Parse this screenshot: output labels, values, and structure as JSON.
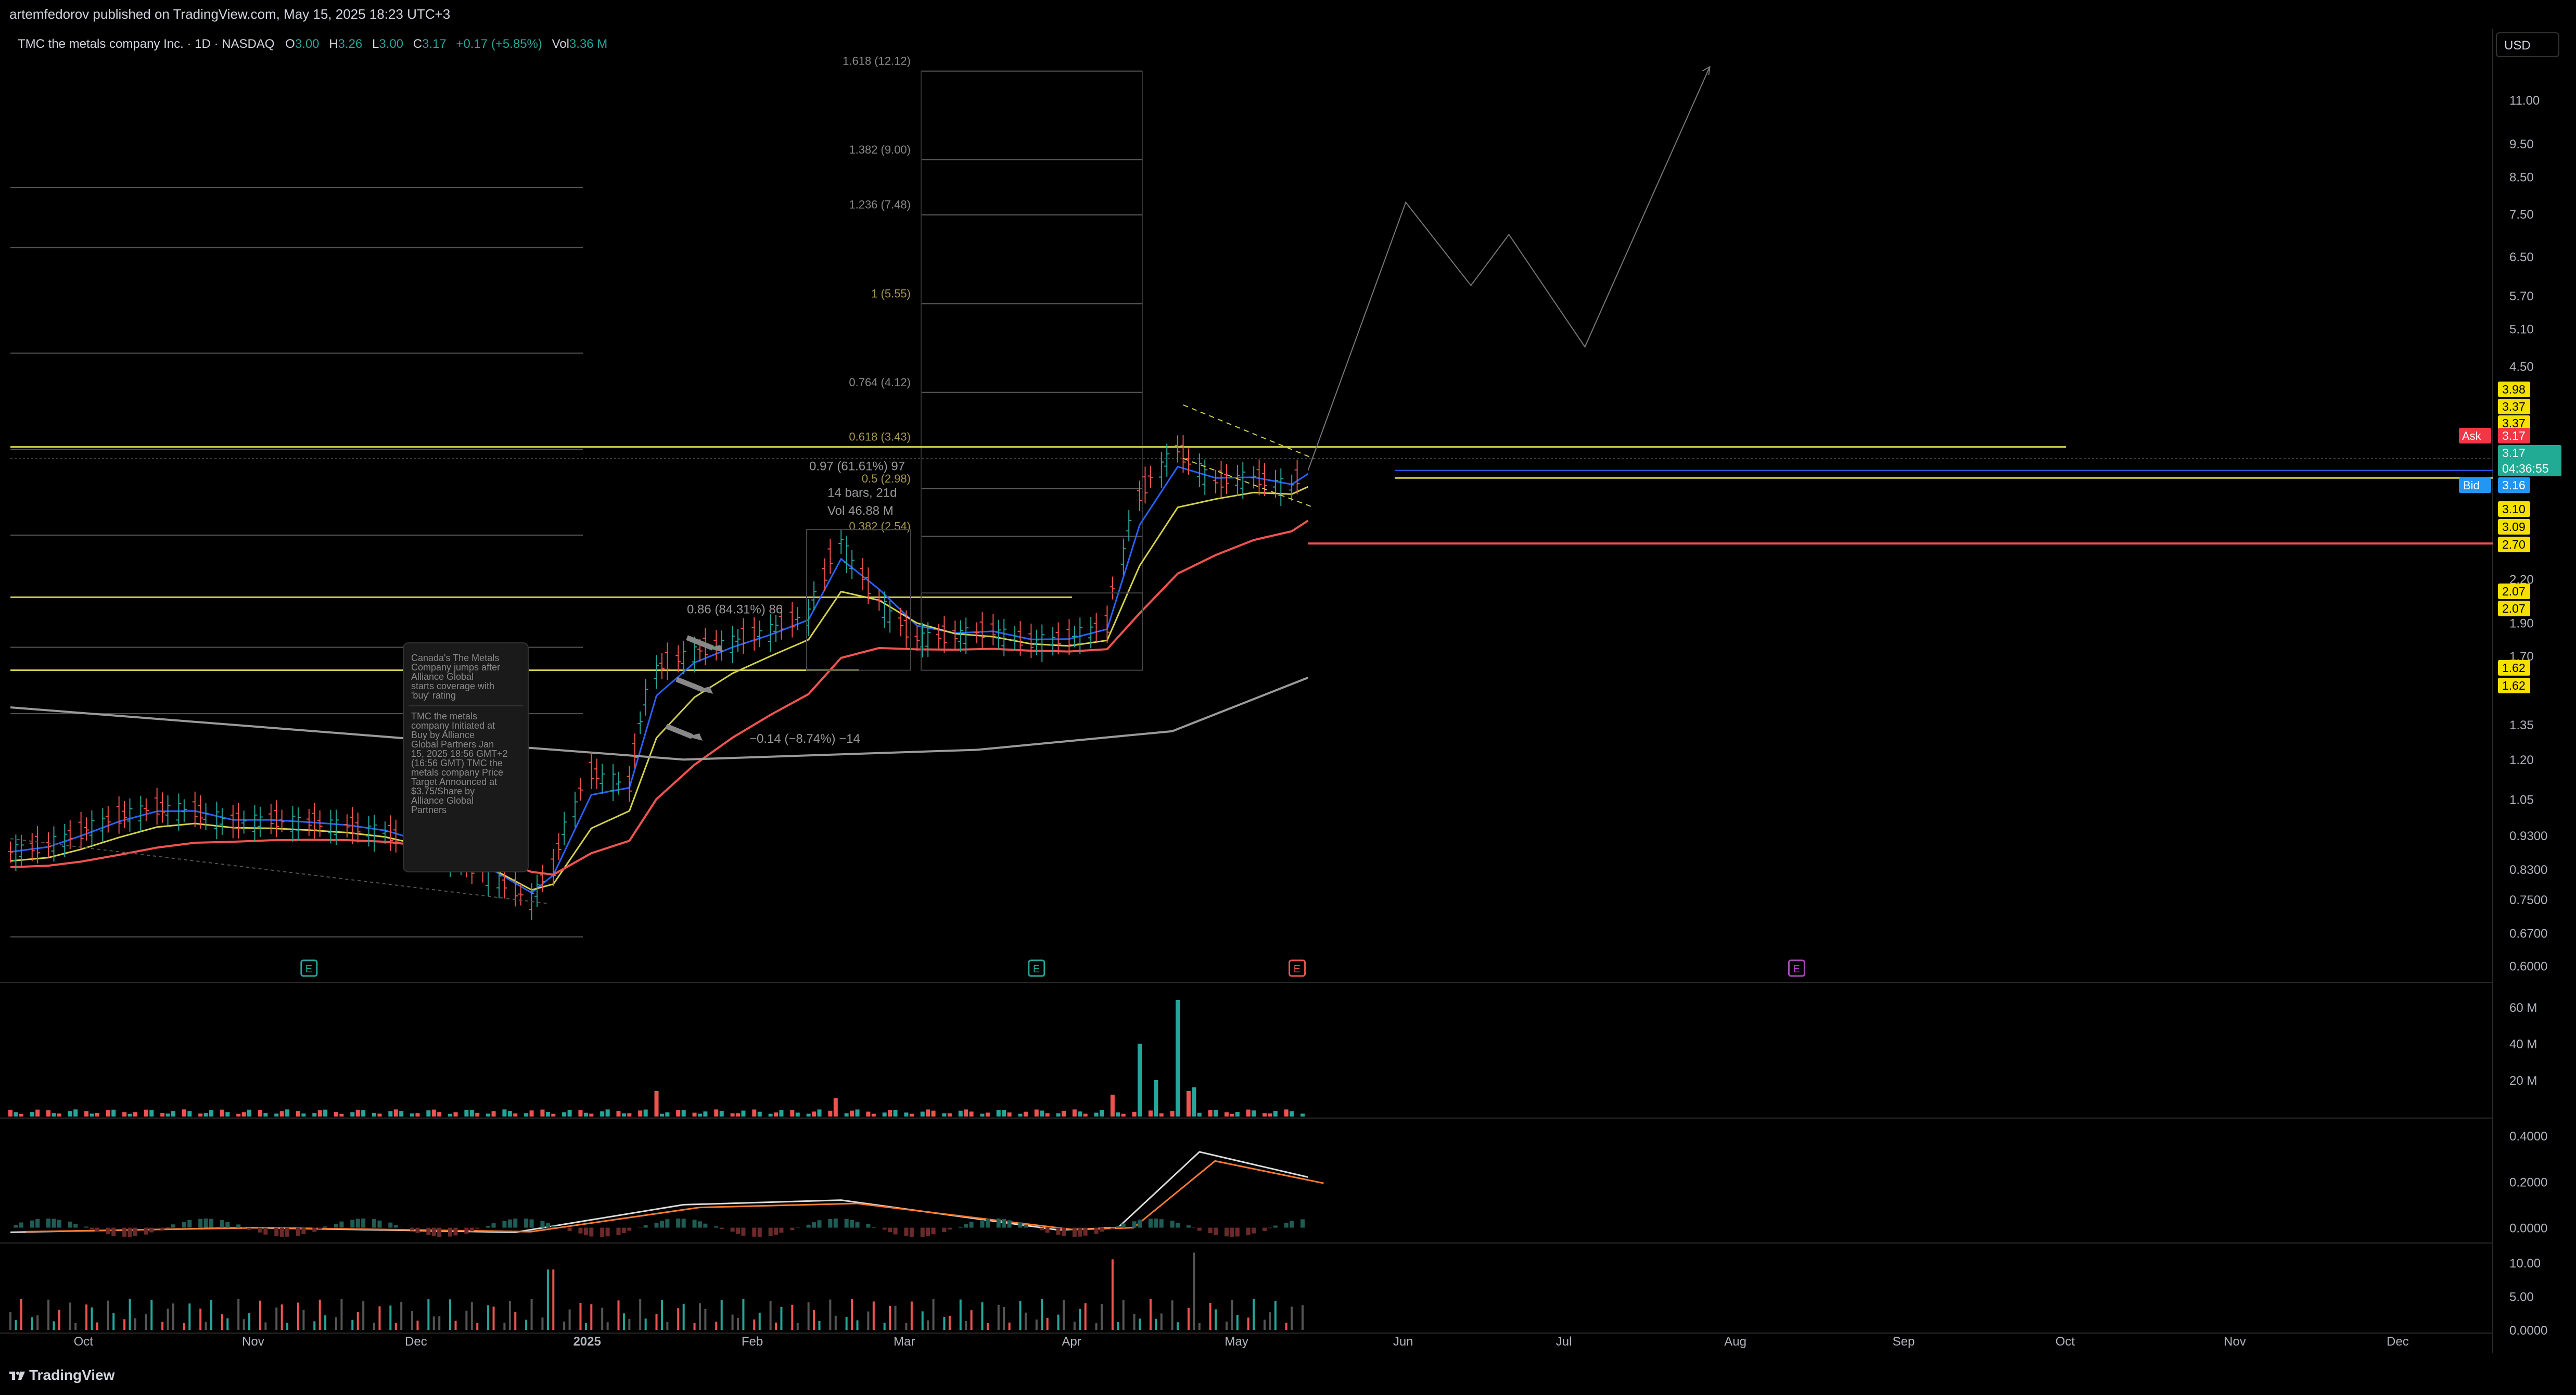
{
  "header": {
    "published_line": "artemfedorov published on TradingView.com, May 15, 2025 18:23 UTC+3"
  },
  "legend": {
    "symbol": "TMC the metals company Inc. · 1D · NASDAQ",
    "o_label": "O",
    "o_value": "3.00",
    "h_label": "H",
    "h_value": "3.26",
    "l_label": "L",
    "l_value": "3.00",
    "c_label": "C",
    "c_value": "3.17",
    "change": "+0.17 (+5.85%)",
    "vol_label": "Vol",
    "vol_value": "3.36 M"
  },
  "currency_button": "USD",
  "footer": {
    "brand": "TradingView"
  },
  "colors": {
    "bg": "#000000",
    "grid": "#1a1a1a",
    "text": "#b2b5be",
    "green": "#26a69a",
    "red": "#ef5350",
    "yellow": "#d4d14a",
    "blue": "#2962ff",
    "gray_ma": "#9a9a9a",
    "fib": "#5a5a5a",
    "ask": "#f23645",
    "bid": "#2196f3",
    "price_tag": "#22ab94",
    "level_tag": "#f5e000",
    "earnings_teal": "#26a69a",
    "earnings_red": "#ef5350",
    "earnings_purple": "#ab47bc"
  },
  "chart_data": [
    {
      "type": "candlestick",
      "title": "TMC the metals company Inc. · 1D · NASDAQ",
      "scale": "log",
      "ylim": [
        0.57,
        13.5
      ],
      "y_ticks": [
        "11.00",
        "9.50",
        "8.50",
        "7.50",
        "6.50",
        "5.70",
        "5.10",
        "4.50",
        "3.98",
        "3.37",
        "3.37",
        "3.10",
        "3.09",
        "2.70",
        "2.20",
        "2.07",
        "2.07",
        "1.90",
        "1.70",
        "1.62",
        "1.62",
        "1.35",
        "1.20",
        "1.05",
        "0.9300",
        "0.8300",
        "0.7500",
        "0.6700",
        "0.6000"
      ],
      "x_labels": [
        "Oct",
        "Nov",
        "Dec",
        "2025",
        "Feb",
        "Mar",
        "Apr",
        "May",
        "Jun",
        "Jul",
        "Aug",
        "Sep",
        "Oct",
        "Nov",
        "Dec"
      ],
      "last": {
        "close": 3.17,
        "countdown": "04:36:55",
        "ask": 3.17,
        "bid": 3.16
      },
      "level_tags": [
        "3.98",
        "3.37",
        "3.37",
        "3.10",
        "3.09",
        "2.70",
        "2.07",
        "2.07",
        "1.62",
        "1.62"
      ],
      "price_path": [
        {
          "t": "2024-09-18",
          "c": 0.88
        },
        {
          "t": "2024-09-25",
          "c": 0.9
        },
        {
          "t": "2024-10-01",
          "c": 0.94
        },
        {
          "t": "2024-10-08",
          "c": 0.99
        },
        {
          "t": "2024-10-15",
          "c": 1.02
        },
        {
          "t": "2024-10-22",
          "c": 1.01
        },
        {
          "t": "2024-10-29",
          "c": 0.97
        },
        {
          "t": "2024-11-05",
          "c": 0.98
        },
        {
          "t": "2024-11-12",
          "c": 0.97
        },
        {
          "t": "2024-11-19",
          "c": 0.96
        },
        {
          "t": "2024-11-26",
          "c": 0.94
        },
        {
          "t": "2024-12-03",
          "c": 0.9
        },
        {
          "t": "2024-12-10",
          "c": 0.86
        },
        {
          "t": "2024-12-17",
          "c": 0.8
        },
        {
          "t": "2024-12-23",
          "c": 0.75
        },
        {
          "t": "2024-12-27",
          "c": 0.83
        },
        {
          "t": "2025-01-03",
          "c": 1.15
        },
        {
          "t": "2025-01-10",
          "c": 1.1
        },
        {
          "t": "2025-01-15",
          "c": 1.62
        },
        {
          "t": "2025-01-22",
          "c": 1.72
        },
        {
          "t": "2025-01-29",
          "c": 1.78
        },
        {
          "t": "2025-02-05",
          "c": 1.85
        },
        {
          "t": "2025-02-12",
          "c": 1.95
        },
        {
          "t": "2025-02-18",
          "c": 2.5
        },
        {
          "t": "2025-02-25",
          "c": 2.05
        },
        {
          "t": "2025-03-04",
          "c": 1.8
        },
        {
          "t": "2025-03-11",
          "c": 1.82
        },
        {
          "t": "2025-03-18",
          "c": 1.85
        },
        {
          "t": "2025-03-25",
          "c": 1.78
        },
        {
          "t": "2025-04-01",
          "c": 1.8
        },
        {
          "t": "2025-04-08",
          "c": 1.88
        },
        {
          "t": "2025-04-14",
          "c": 2.9
        },
        {
          "t": "2025-04-21",
          "c": 3.4
        },
        {
          "t": "2025-04-28",
          "c": 3.05
        },
        {
          "t": "2025-05-05",
          "c": 3.1
        },
        {
          "t": "2025-05-12",
          "c": 3.0
        },
        {
          "t": "2025-05-15",
          "c": 3.17
        }
      ],
      "projection": [
        {
          "t": "2025-05-15",
          "c": 3.17
        },
        {
          "t": "2025-06-02",
          "c": 7.8
        },
        {
          "t": "2025-06-14",
          "c": 5.9
        },
        {
          "t": "2025-06-21",
          "c": 7.0
        },
        {
          "t": "2025-07-05",
          "c": 4.8
        },
        {
          "t": "2025-07-28",
          "c": 12.3
        }
      ],
      "fib_levels": [
        {
          "label": "1.618 (12.12)"
        },
        {
          "label": "1.382 (9.00)"
        },
        {
          "label": "1.236 (7.48)"
        },
        {
          "label": "1 (5.55)"
        },
        {
          "label": "0.764 (4.12)"
        },
        {
          "label": "0.618 (3.43)"
        },
        {
          "label": "0.5 (2.98)"
        },
        {
          "label": "0.382 (2.54)"
        }
      ],
      "annotations": [
        {
          "text": "0.97 (61.61%) 97"
        },
        {
          "text": "14 bars, 21d"
        },
        {
          "text": "Vol 46.88 M"
        },
        {
          "text": "0.86 (84.31%) 86"
        },
        {
          "text": "−0.14 (−8.74%) −14"
        }
      ],
      "news_notes": [
        "Canada's The Metals Company jumps after Alliance Global starts coverage with 'buy' rating",
        "TMC the metals company Initiated at Buy by Alliance Global Partners Jan 15, 2025 18:56 GMT+2 (16:56 GMT) TMC the metals company Price Target Announced at $3.75/Share by Alliance Global Partners"
      ],
      "earnings_markers": [
        {
          "t": "2024-11-12",
          "label": "E",
          "color": "teal"
        },
        {
          "t": "2025-03-26",
          "label": "E",
          "color": "teal"
        },
        {
          "t": "2025-05-13",
          "label": "E",
          "color": "red"
        },
        {
          "t": "2025-08-13",
          "label": "E",
          "color": "purple"
        }
      ],
      "series": [
        {
          "name": "",
          "kind": "ema_fast",
          "color": "blue"
        },
        {
          "name": "",
          "kind": "ema_mid",
          "color": "yellow"
        },
        {
          "name": "",
          "kind": "ema_slow",
          "color": "red"
        },
        {
          "name": "",
          "kind": "sma_long",
          "color": "gray"
        }
      ]
    },
    {
      "type": "bar",
      "panel": "volume",
      "y_ticks": [
        "60 M",
        "40 M",
        "20 M"
      ],
      "ylim": [
        0,
        70
      ],
      "unit": "M",
      "values_hint": "daily volume in millions",
      "spikes": [
        {
          "t": "2025-01-15",
          "v": 14
        },
        {
          "t": "2025-02-18",
          "v": 10
        },
        {
          "t": "2025-04-09",
          "v": 12
        },
        {
          "t": "2025-04-14",
          "v": 30
        },
        {
          "t": "2025-04-15",
          "v": 40
        },
        {
          "t": "2025-04-17",
          "v": 20
        },
        {
          "t": "2025-04-22",
          "v": 64
        },
        {
          "t": "2025-04-23",
          "v": 14
        },
        {
          "t": "2025-04-24",
          "v": 16
        }
      ]
    },
    {
      "type": "line",
      "panel": "macd",
      "y_ticks": [
        "0.4000",
        "0.2000",
        "0.0000"
      ],
      "ylim": [
        -0.06,
        0.45
      ]
    },
    {
      "type": "bar",
      "panel": "oscillator",
      "y_ticks": [
        "10.00",
        "5.00",
        "0.0000"
      ],
      "ylim": [
        0,
        12
      ]
    }
  ]
}
